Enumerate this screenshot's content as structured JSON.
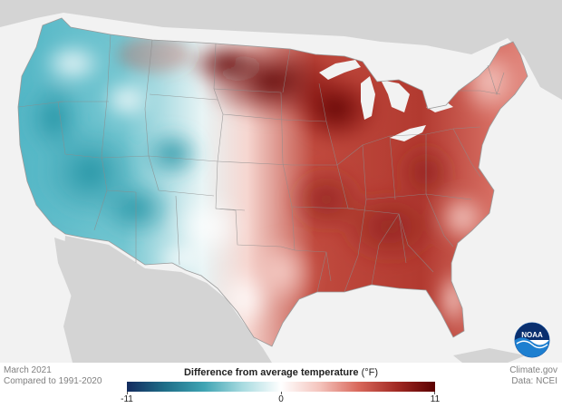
{
  "map": {
    "caption_line1": "March 2021",
    "caption_line2": "Compared to 1991-2020",
    "credit_line1": "Climate.gov",
    "credit_line2": "Data: NCEI",
    "logo_text": "NOAA"
  },
  "legend": {
    "title": "Difference from average temperature",
    "unit": "(°F)",
    "min_label": "-11",
    "mid_label": "0",
    "max_label": "11",
    "min_value": -11,
    "max_value": 11,
    "colors": [
      "#132b5e",
      "#1f6f89",
      "#3fa4b3",
      "#a8dbe0",
      "#ffffff",
      "#f4c4bd",
      "#d9695c",
      "#a22a24",
      "#5a0000"
    ]
  },
  "colors": {
    "land_outside": "#d4d4d4",
    "water": "#f2f2f2",
    "cold_region": "#5fbccb",
    "warm_region": "#b5382f",
    "boundary": "#8c8c8c"
  }
}
